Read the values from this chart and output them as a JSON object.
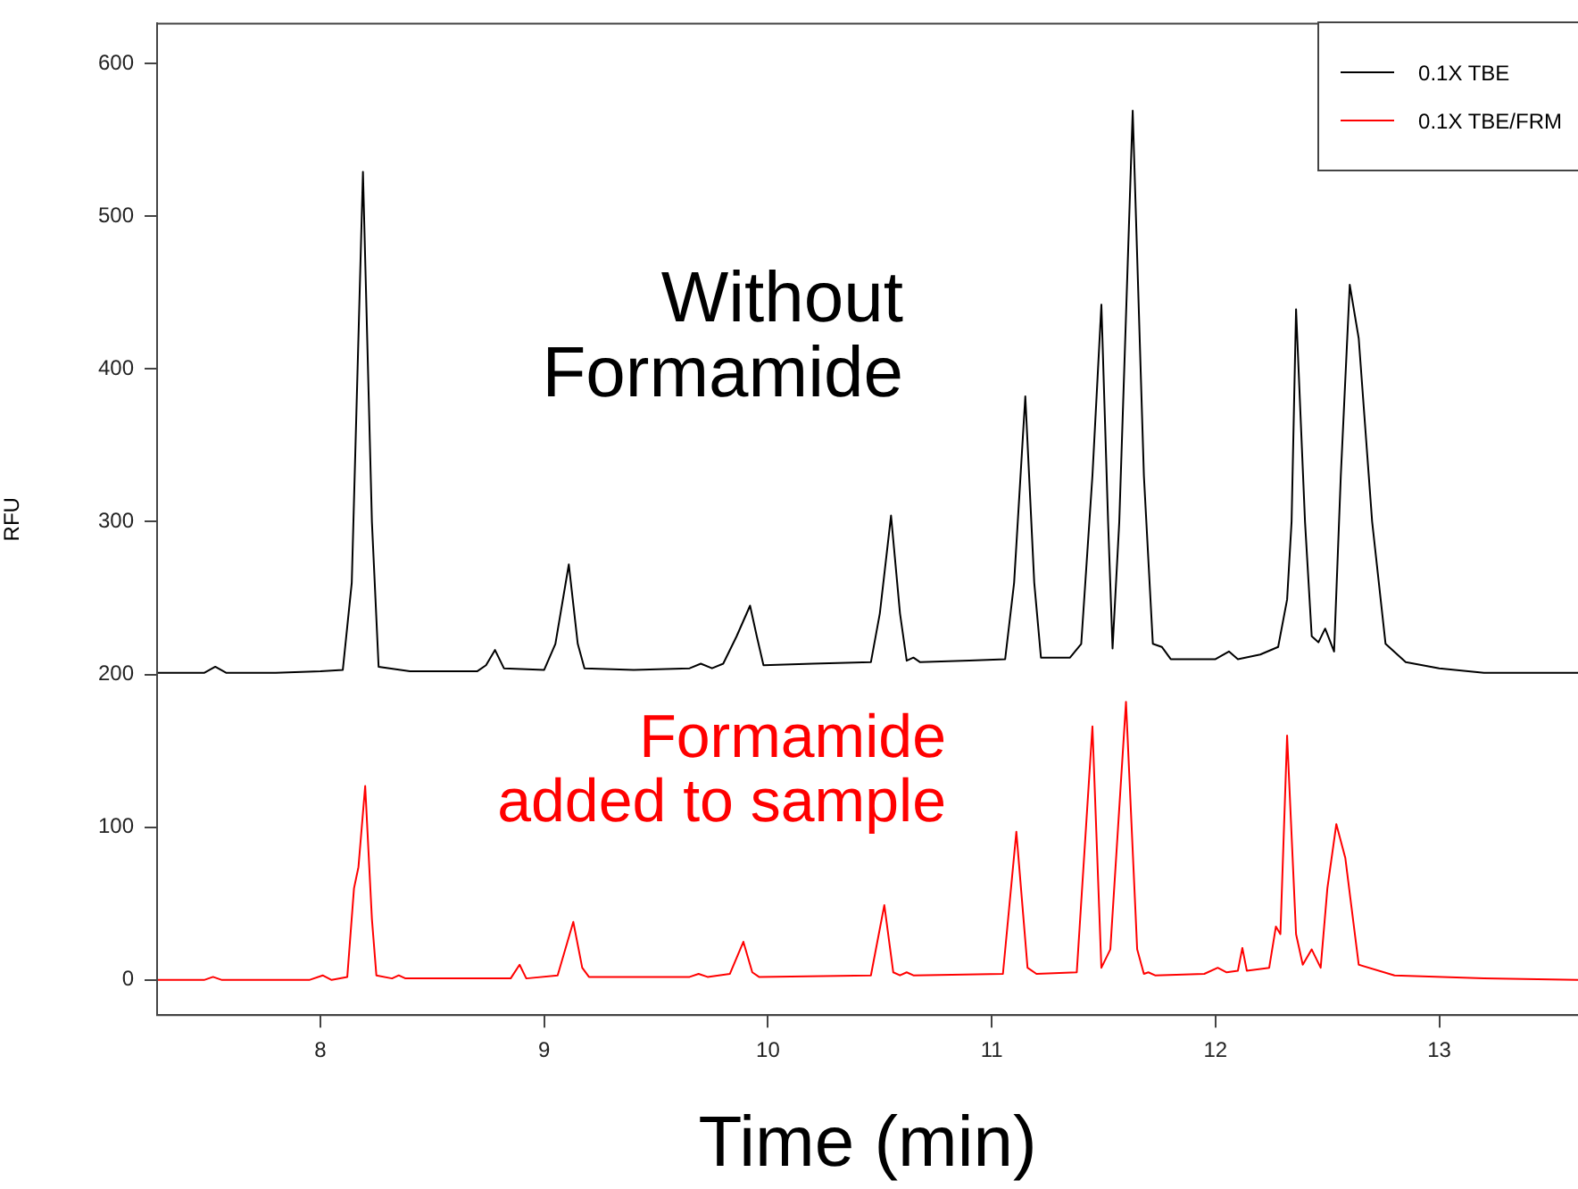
{
  "chart_data": {
    "type": "line",
    "xlabel": "Time (min)",
    "ylabel": "RFU",
    "xlim": [
      7.27,
      13.62
    ],
    "xticks": [
      8,
      9,
      10,
      11,
      12,
      13
    ],
    "ylim": [
      -23,
      626
    ],
    "yticks": [
      0,
      100,
      200,
      300,
      400,
      500,
      600
    ],
    "legend": "top right",
    "marker": "none",
    "line_style": "solid",
    "annotations": [
      "Without\nFormamide",
      "Formamide\nadded to sample"
    ],
    "series": [
      {
        "name": "0.1X TBE",
        "color": "#000000",
        "x": [
          7.27,
          7.48,
          7.53,
          7.58,
          7.8,
          8.0,
          8.1,
          8.14,
          8.19,
          8.23,
          8.26,
          8.4,
          8.7,
          8.74,
          8.78,
          8.82,
          9.0,
          9.05,
          9.11,
          9.15,
          9.18,
          9.4,
          9.65,
          9.7,
          9.75,
          9.8,
          9.86,
          9.92,
          9.95,
          9.98,
          10.2,
          10.46,
          10.5,
          10.55,
          10.59,
          10.62,
          10.65,
          10.68,
          10.9,
          11.06,
          11.1,
          11.15,
          11.19,
          11.22,
          11.35,
          11.4,
          11.45,
          11.49,
          11.52,
          11.54,
          11.57,
          11.63,
          11.68,
          11.72,
          11.76,
          11.8,
          12.0,
          12.06,
          12.1,
          12.2,
          12.28,
          12.32,
          12.34,
          12.36,
          12.4,
          12.43,
          12.46,
          12.49,
          12.53,
          12.56,
          12.6,
          12.64,
          12.7,
          12.76,
          12.85,
          13.0,
          13.2,
          13.62
        ],
        "values": [
          201,
          201,
          205,
          201,
          201,
          202,
          203,
          260,
          529,
          300,
          205,
          202,
          202,
          206,
          216,
          204,
          203,
          220,
          272,
          220,
          204,
          203,
          204,
          207,
          204,
          207,
          225,
          245,
          225,
          206,
          207,
          208,
          240,
          304,
          240,
          209,
          211,
          208,
          209,
          210,
          260,
          382,
          260,
          211,
          211,
          220,
          330,
          442,
          300,
          217,
          300,
          569,
          330,
          220,
          218,
          210,
          210,
          215,
          210,
          213,
          218,
          249,
          300,
          439,
          300,
          225,
          221,
          230,
          215,
          330,
          455,
          420,
          300,
          220,
          208,
          204,
          201,
          201
        ]
      },
      {
        "name": "0.1X TBE/FRM",
        "color": "#ff0000",
        "x": [
          7.27,
          7.48,
          7.52,
          7.56,
          7.95,
          8.01,
          8.05,
          8.12,
          8.15,
          8.17,
          8.2,
          8.23,
          8.25,
          8.32,
          8.35,
          8.38,
          8.85,
          8.89,
          8.92,
          9.06,
          9.13,
          9.17,
          9.2,
          9.65,
          9.69,
          9.73,
          9.83,
          9.89,
          9.93,
          9.96,
          10.46,
          10.52,
          10.56,
          10.59,
          10.62,
          10.65,
          11.05,
          11.11,
          11.16,
          11.2,
          11.38,
          11.45,
          11.49,
          11.53,
          11.6,
          11.65,
          11.68,
          11.7,
          11.73,
          11.95,
          12.01,
          12.05,
          12.1,
          12.12,
          12.14,
          12.24,
          12.27,
          12.29,
          12.32,
          12.36,
          12.39,
          12.43,
          12.47,
          12.5,
          12.54,
          12.58,
          12.64,
          12.8,
          13.2,
          13.62
        ],
        "values": [
          0,
          0,
          2,
          0,
          0,
          3,
          0,
          2,
          60,
          74,
          127,
          40,
          3,
          1,
          3,
          1,
          1,
          10,
          1,
          3,
          38,
          8,
          2,
          2,
          4,
          2,
          4,
          25,
          5,
          2,
          3,
          49,
          5,
          3,
          5,
          3,
          4,
          97,
          8,
          4,
          5,
          166,
          8,
          20,
          182,
          20,
          4,
          5,
          3,
          4,
          8,
          5,
          6,
          21,
          6,
          8,
          35,
          30,
          160,
          30,
          10,
          20,
          8,
          60,
          102,
          80,
          10,
          3,
          1,
          0
        ]
      }
    ]
  }
}
